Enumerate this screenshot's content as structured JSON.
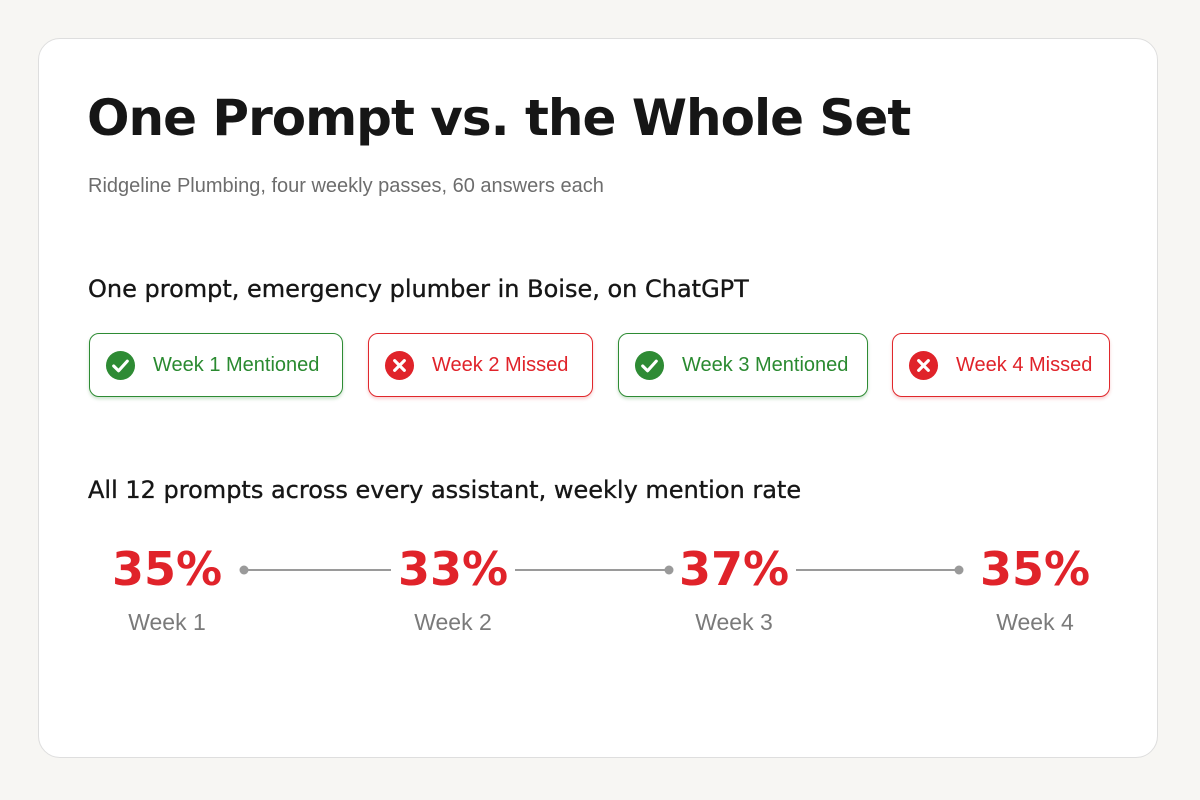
{
  "title": "One Prompt vs. the Whole Set",
  "subtitle": "Ridgeline Plumbing, four weekly passes, 60 answers each",
  "single_prompt": {
    "heading": "One prompt, emergency plumber in Boise, on ChatGPT",
    "weeks": [
      {
        "label": "Week 1 Mentioned",
        "status": "mentioned",
        "icon": "check-circle-icon"
      },
      {
        "label": "Week 2 Missed",
        "status": "missed",
        "icon": "x-circle-icon"
      },
      {
        "label": "Week 3 Mentioned",
        "status": "mentioned",
        "icon": "check-circle-icon"
      },
      {
        "label": "Week 4 Missed",
        "status": "missed",
        "icon": "x-circle-icon"
      }
    ]
  },
  "all_prompts": {
    "heading": "All 12 prompts across every assistant, weekly mention rate",
    "weeks": [
      {
        "value": "35%",
        "label": "Week 1"
      },
      {
        "value": "33%",
        "label": "Week 2"
      },
      {
        "value": "37%",
        "label": "Week 3"
      },
      {
        "value": "35%",
        "label": "Week 4"
      }
    ]
  },
  "colors": {
    "mentioned": "#2e8b34",
    "missed": "#e0232a",
    "connector": "#9a9a9a"
  }
}
